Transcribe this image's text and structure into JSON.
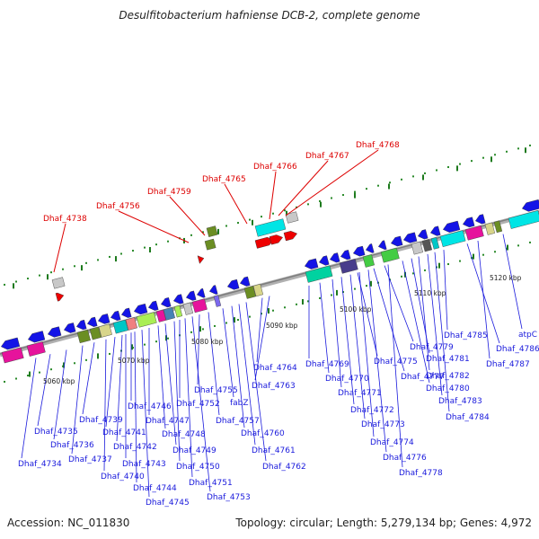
{
  "title": "Desulfitobacterium hafniense DCB-2, complete genome",
  "accession": "Accession: NC_011830",
  "topology": "Topology: circular; Length: 5,279,134 bp; Genes: 4,972",
  "colors": {
    "highlight": "#dd0000",
    "label": "#1a1adc",
    "backbone": "#999999",
    "gene_blue": "#1414e6"
  },
  "tick_labels": [
    "5060 kbp",
    "5070 kbp",
    "5080 kbp",
    "5090 kbp",
    "5100 kbp",
    "5110 kbp",
    "5120 kbp"
  ],
  "highlighted_genes": [
    "Dhaf_4738",
    "Dhaf_4756",
    "Dhaf_4759",
    "Dhaf_4765",
    "Dhaf_4766",
    "Dhaf_4767",
    "Dhaf_4768"
  ],
  "gene_labels": [
    "Dhaf_4734",
    "Dhaf_4735",
    "Dhaf_4736",
    "Dhaf_4737",
    "Dhaf_4739",
    "Dhaf_4740",
    "Dhaf_4741",
    "Dhaf_4742",
    "Dhaf_4743",
    "Dhaf_4744",
    "Dhaf_4745",
    "Dhaf_4746",
    "Dhaf_4747",
    "Dhaf_4748",
    "Dhaf_4749",
    "Dhaf_4750",
    "Dhaf_4751",
    "Dhaf_4752",
    "Dhaf_4753",
    "Dhaf_4755",
    "fabZ",
    "Dhaf_4757",
    "Dhaf_4760",
    "Dhaf_4761",
    "Dhaf_4762",
    "Dhaf_4763",
    "Dhaf_4764",
    "Dhaf_4769",
    "Dhaf_4770",
    "Dhaf_4771",
    "Dhaf_4772",
    "Dhaf_4773",
    "Dhaf_4774",
    "Dhaf_4775",
    "Dhaf_4776",
    "Dhaf_4777",
    "Dhaf_4778",
    "Dhaf_4779",
    "Dhaf_4780",
    "Dhaf_4781",
    "Dhaf_4782",
    "Dhaf_4783",
    "Dhaf_4784",
    "Dhaf_4785",
    "Dhaf_4786",
    "Dhaf_4787",
    "atpC"
  ]
}
